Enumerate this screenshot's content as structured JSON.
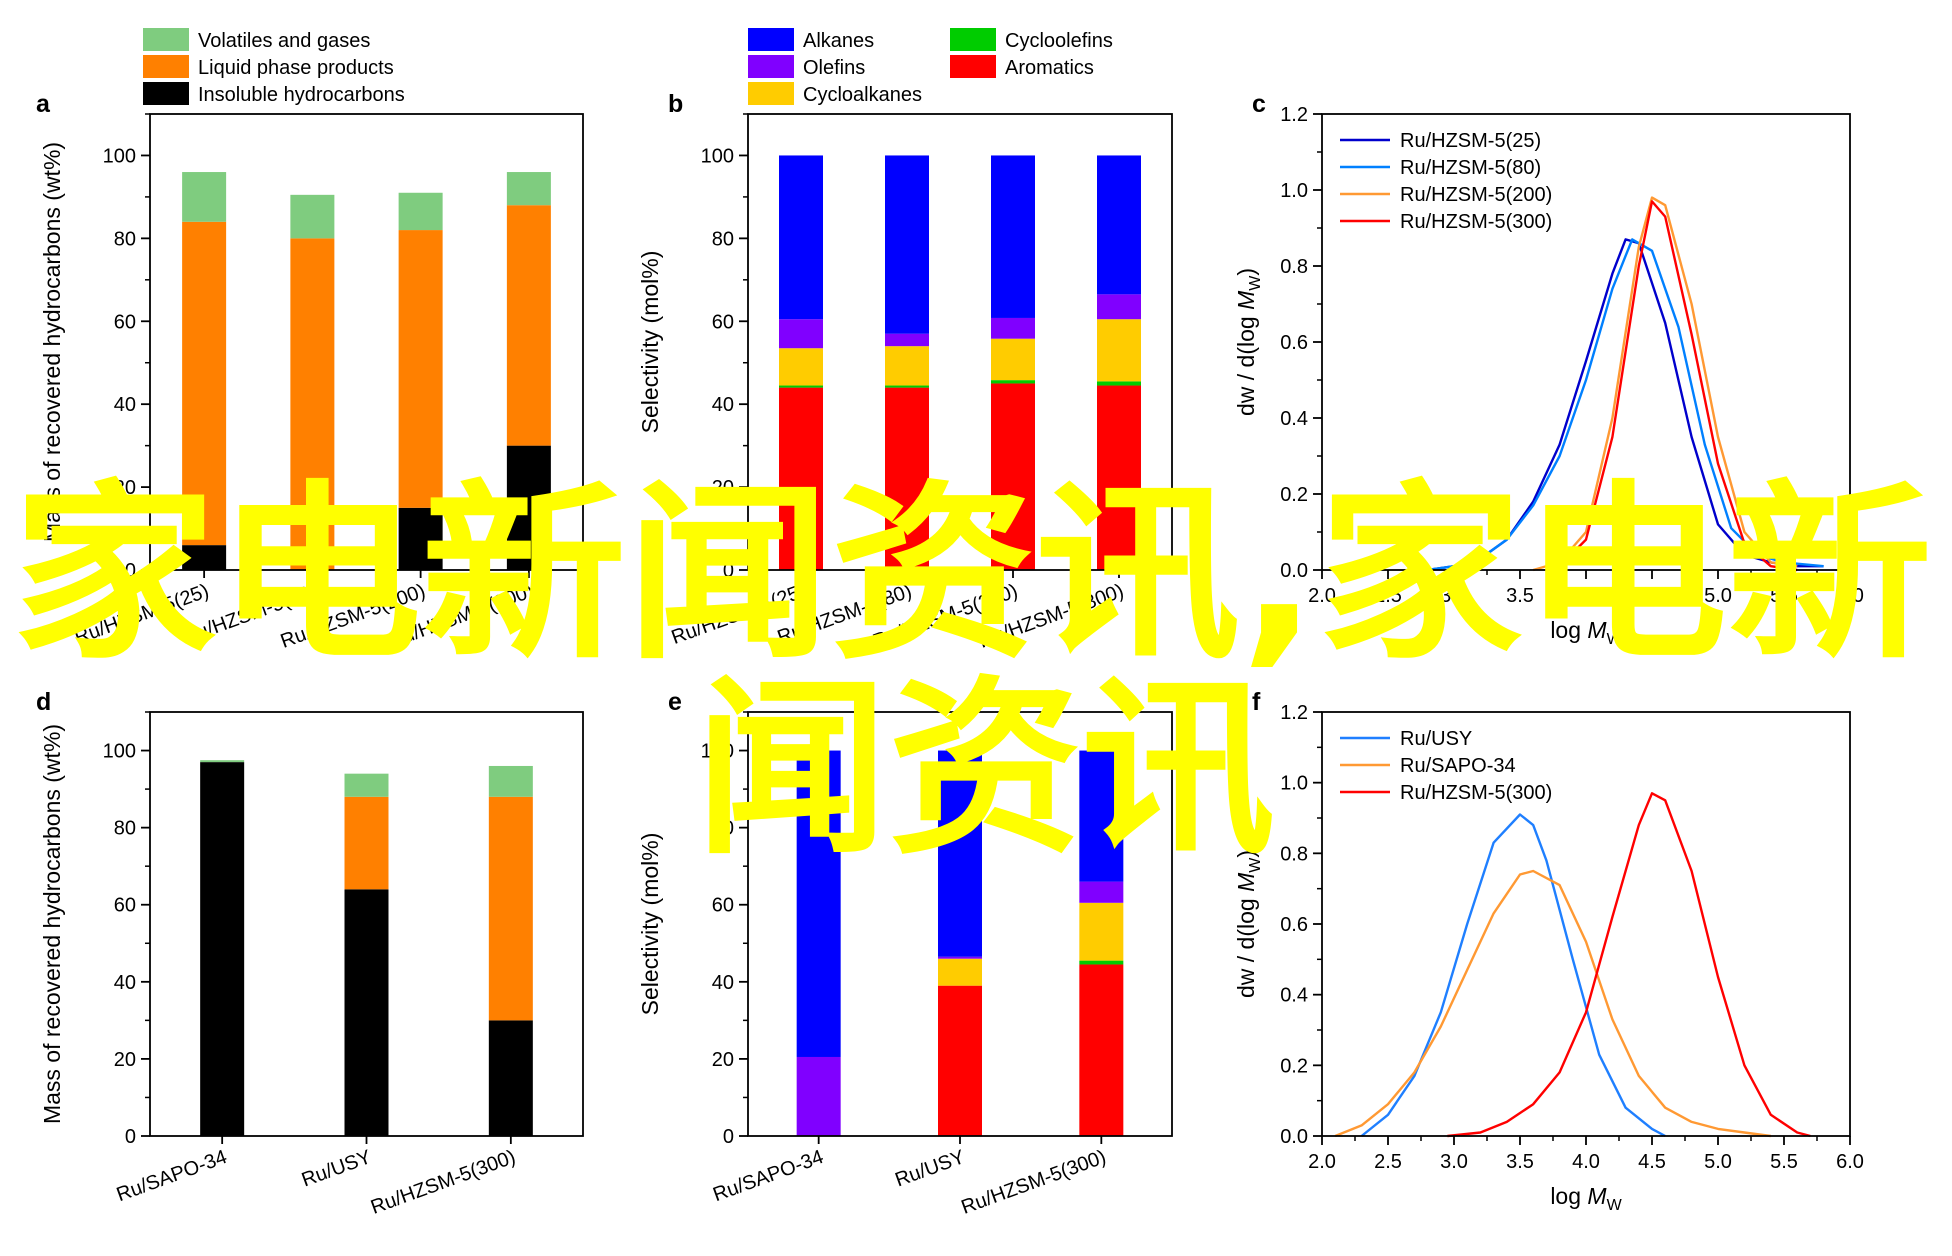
{
  "watermark": {
    "line1": "家电新闻资讯,家电新",
    "line2": "闻资讯",
    "color": "#ffff00"
  },
  "colors": {
    "volatiles": "#7fcc7f",
    "liquid": "#ff8000",
    "insoluble": "#000000",
    "alkanes": "#0000ff",
    "olefins": "#8000ff",
    "cycloalkanes": "#ffcc00",
    "cycloolefins": "#00cc00",
    "aromatics": "#ff0000",
    "z25": "#0000cc",
    "z80": "#0080ff",
    "z200": "#ff9933",
    "z300": "#ff0000",
    "usy": "#1f7fff",
    "sapo": "#ff9933",
    "hzsm300": "#ff0000"
  },
  "chart_data": [
    {
      "panel": "a",
      "type": "bar",
      "stacked": true,
      "ylabel": "Mass of recovered hydrocarbons (wt%)",
      "ylim": [
        0,
        110
      ],
      "yticks": [
        "0",
        "20",
        "40",
        "60",
        "80",
        "100"
      ],
      "categories": [
        "Ru/HZSM-5(25)",
        "Ru/HZSM-5(80)",
        "Ru/HZSM-5(200)",
        "Ru/HZSM-5(300)"
      ],
      "series": [
        {
          "name": "Insoluble hydrocarbons",
          "color": "insoluble",
          "values": [
            6,
            0,
            15,
            30
          ]
        },
        {
          "name": "Liquid phase products",
          "color": "liquid",
          "values": [
            78,
            80,
            67,
            58
          ]
        },
        {
          "name": "Volatiles and gases",
          "color": "volatiles",
          "values": [
            12,
            10.5,
            9,
            8
          ]
        }
      ],
      "legend": "top-left"
    },
    {
      "panel": "b",
      "type": "bar",
      "stacked": true,
      "ylabel": "Selectivity (mol%)",
      "ylim": [
        0,
        110
      ],
      "yticks": [
        "0",
        "20",
        "40",
        "60",
        "80",
        "100"
      ],
      "categories": [
        "Ru/HZSM-5(25)",
        "Ru/HZSM-5(80)",
        "Ru/HZSM-5(200)",
        "Ru/HZSM-5(300)"
      ],
      "series": [
        {
          "name": "Aromatics",
          "color": "aromatics",
          "values": [
            44,
            44,
            45,
            44.5
          ]
        },
        {
          "name": "Cycloolefins",
          "color": "cycloolefins",
          "values": [
            0.5,
            0.5,
            0.8,
            1
          ]
        },
        {
          "name": "Cycloalkanes",
          "color": "cycloalkanes",
          "values": [
            9,
            9.5,
            10,
            15
          ]
        },
        {
          "name": "Olefins",
          "color": "olefins",
          "values": [
            7,
            3,
            5,
            6
          ]
        },
        {
          "name": "Alkanes",
          "color": "alkanes",
          "values": [
            39.5,
            43,
            39.2,
            33.5
          ]
        }
      ],
      "legend_cols": [
        [
          "Alkanes",
          "Olefins",
          "Cycloalkanes"
        ],
        [
          "Cycloolefins",
          "Aromatics"
        ]
      ],
      "legend": "top"
    },
    {
      "panel": "c",
      "type": "line",
      "xlabel_main": "log ",
      "xlabel_it": "M",
      "xlabel_sub": "W",
      "ylabel_main": "dw / d(log ",
      "ylabel_it": "M",
      "ylabel_sub": "W",
      "ylabel_end": ")",
      "xlim": [
        2.0,
        6.0
      ],
      "ylim": [
        0,
        1.2
      ],
      "xticks": [
        "2.0",
        "2.5",
        "3.0",
        "3.5",
        "4.0",
        "4.5",
        "5.0",
        "5.5",
        "6.0"
      ],
      "yticks": [
        "0.0",
        "0.2",
        "0.4",
        "0.6",
        "0.8",
        "1.0",
        "1.2"
      ],
      "series": [
        {
          "name": "Ru/HZSM-5(25)",
          "color": "z25",
          "x": [
            2.8,
            3.0,
            3.2,
            3.4,
            3.6,
            3.8,
            4.0,
            4.2,
            4.3,
            4.4,
            4.6,
            4.8,
            5.0,
            5.2,
            5.4,
            5.6,
            5.8
          ],
          "y": [
            0.0,
            0.01,
            0.03,
            0.08,
            0.18,
            0.33,
            0.55,
            0.78,
            0.87,
            0.86,
            0.65,
            0.35,
            0.12,
            0.04,
            0.02,
            0.01,
            0.01
          ]
        },
        {
          "name": "Ru/HZSM-5(80)",
          "color": "z80",
          "x": [
            2.8,
            3.0,
            3.2,
            3.4,
            3.6,
            3.8,
            4.0,
            4.2,
            4.35,
            4.5,
            4.7,
            4.9,
            5.1,
            5.3,
            5.5,
            5.8
          ],
          "y": [
            0.0,
            0.01,
            0.03,
            0.08,
            0.17,
            0.3,
            0.5,
            0.74,
            0.87,
            0.84,
            0.64,
            0.33,
            0.11,
            0.04,
            0.02,
            0.01
          ]
        },
        {
          "name": "Ru/HZSM-5(200)",
          "color": "z200",
          "x": [
            3.6,
            3.8,
            4.0,
            4.2,
            4.4,
            4.5,
            4.6,
            4.8,
            5.0,
            5.2,
            5.4,
            5.6
          ],
          "y": [
            0.0,
            0.02,
            0.1,
            0.4,
            0.85,
            0.98,
            0.96,
            0.7,
            0.35,
            0.1,
            0.02,
            0.01
          ]
        },
        {
          "name": "Ru/HZSM-5(300)",
          "color": "z300",
          "x": [
            3.8,
            4.0,
            4.2,
            4.4,
            4.5,
            4.6,
            4.8,
            5.0,
            5.2,
            5.4,
            5.6
          ],
          "y": [
            0.01,
            0.08,
            0.35,
            0.8,
            0.97,
            0.93,
            0.62,
            0.28,
            0.07,
            0.01,
            0.0
          ]
        }
      ],
      "legend": "top-left"
    },
    {
      "panel": "d",
      "type": "bar",
      "stacked": true,
      "ylabel": "Mass of recovered hydrocarbons (wt%)",
      "ylim": [
        0,
        110
      ],
      "yticks": [
        "0",
        "20",
        "40",
        "60",
        "80",
        "100"
      ],
      "categories": [
        "Ru/SAPO-34",
        "Ru/USY",
        "Ru/HZSM-5(300)"
      ],
      "series": [
        {
          "name": "Insoluble hydrocarbons",
          "color": "insoluble",
          "values": [
            97,
            64,
            30
          ]
        },
        {
          "name": "Liquid phase products",
          "color": "liquid",
          "values": [
            0,
            24,
            58
          ]
        },
        {
          "name": "Volatiles and gases",
          "color": "volatiles",
          "values": [
            0.5,
            6,
            8
          ]
        }
      ]
    },
    {
      "panel": "e",
      "type": "bar",
      "stacked": true,
      "ylabel": "Selectivity (mol%)",
      "ylim": [
        0,
        110
      ],
      "yticks": [
        "0",
        "20",
        "40",
        "60",
        "80",
        "100"
      ],
      "categories": [
        "Ru/SAPO-34",
        "Ru/USY",
        "Ru/HZSM-5(300)"
      ],
      "series": [
        {
          "name": "Aromatics",
          "color": "aromatics",
          "values": [
            0,
            39,
            44.5
          ]
        },
        {
          "name": "Cycloolefins",
          "color": "cycloolefins",
          "values": [
            0,
            0,
            1
          ]
        },
        {
          "name": "Cycloalkanes",
          "color": "cycloalkanes",
          "values": [
            0,
            7,
            15
          ]
        },
        {
          "name": "Olefins",
          "color": "olefins",
          "values": [
            20.5,
            0.5,
            5.5
          ]
        },
        {
          "name": "Alkanes",
          "color": "alkanes",
          "values": [
            79.5,
            53.5,
            34
          ]
        }
      ]
    },
    {
      "panel": "f",
      "type": "line",
      "xlabel_main": "log ",
      "xlabel_it": "M",
      "xlabel_sub": "W",
      "ylabel_main": "dw / d(log ",
      "ylabel_it": "M",
      "ylabel_sub": "W",
      "ylabel_end": ")",
      "xlim": [
        2.0,
        6.0
      ],
      "ylim": [
        0,
        1.2
      ],
      "xticks": [
        "2.0",
        "2.5",
        "3.0",
        "3.5",
        "4.0",
        "4.5",
        "5.0",
        "5.5",
        "6.0"
      ],
      "yticks": [
        "0.0",
        "0.2",
        "0.4",
        "0.6",
        "0.8",
        "1.0",
        "1.2"
      ],
      "series": [
        {
          "name": "Ru/USY",
          "color": "usy",
          "x": [
            2.3,
            2.5,
            2.7,
            2.9,
            3.1,
            3.3,
            3.5,
            3.6,
            3.7,
            3.9,
            4.1,
            4.3,
            4.5,
            4.6
          ],
          "y": [
            0.0,
            0.06,
            0.17,
            0.35,
            0.6,
            0.83,
            0.91,
            0.88,
            0.78,
            0.5,
            0.23,
            0.08,
            0.02,
            0.0
          ]
        },
        {
          "name": "Ru/SAPO-34",
          "color": "sapo",
          "x": [
            2.1,
            2.3,
            2.5,
            2.7,
            2.9,
            3.1,
            3.3,
            3.5,
            3.6,
            3.8,
            4.0,
            4.2,
            4.4,
            4.6,
            4.8,
            5.0,
            5.2,
            5.4
          ],
          "y": [
            0.0,
            0.03,
            0.09,
            0.18,
            0.31,
            0.47,
            0.63,
            0.74,
            0.75,
            0.71,
            0.55,
            0.33,
            0.17,
            0.08,
            0.04,
            0.02,
            0.01,
            0.0
          ]
        },
        {
          "name": "Ru/HZSM-5(300)",
          "color": "hzsm300",
          "x": [
            2.95,
            3.2,
            3.4,
            3.6,
            3.8,
            4.0,
            4.2,
            4.4,
            4.5,
            4.6,
            4.8,
            5.0,
            5.2,
            5.4,
            5.6,
            5.7
          ],
          "y": [
            0.0,
            0.01,
            0.04,
            0.09,
            0.18,
            0.35,
            0.62,
            0.88,
            0.97,
            0.95,
            0.75,
            0.45,
            0.2,
            0.06,
            0.01,
            0.0
          ]
        }
      ],
      "legend": "top-left"
    }
  ]
}
